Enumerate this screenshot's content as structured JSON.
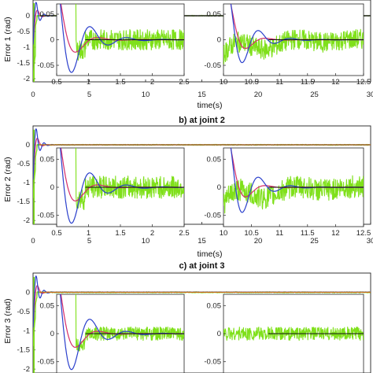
{
  "chart_data": [
    {
      "type": "line",
      "title": "",
      "xlabel": "time(s)",
      "ylabel": "Error 1 (rad)",
      "xlim": [
        0,
        30
      ],
      "ylim": [
        -2.1,
        0.5
      ],
      "x_ticks": [
        "0",
        "5",
        "10",
        "15",
        "20",
        "25",
        "30"
      ],
      "y_ticks": [
        "-2",
        "-1.5",
        "-1",
        "-0.5",
        "0"
      ],
      "series_colors": [
        "#7fe01a",
        "#d62d6a",
        "#2a3fcc",
        "#111111"
      ],
      "insets": [
        {
          "xlim": [
            0.5,
            2.5
          ],
          "ylim": [
            -0.07,
            0.07
          ],
          "x_ticks": [
            "0.5",
            "1",
            "1.5",
            "2",
            "2.5"
          ],
          "y_ticks": [
            "0.05",
            "0",
            "-0.05"
          ]
        },
        {
          "xlim": [
            10,
            12.5
          ],
          "ylim": [
            -0.07,
            0.07
          ],
          "x_ticks": [
            "10",
            "10.5",
            "11",
            "11.5",
            "12",
            "12.5"
          ],
          "y_ticks": [
            "0.05",
            "0",
            "-0.05"
          ]
        }
      ]
    },
    {
      "type": "line",
      "title": "b) at joint 2",
      "xlabel": "time(s)",
      "ylabel": "Error 2 (rad)",
      "xlim": [
        0,
        30
      ],
      "ylim": [
        -2.1,
        0.5
      ],
      "x_ticks": [
        "0",
        "5",
        "10",
        "15",
        "20",
        "25",
        "30"
      ],
      "y_ticks": [
        "-2",
        "-1.5",
        "-1",
        "-0.5",
        "0"
      ],
      "series_colors": [
        "#7fe01a",
        "#d62d6a",
        "#2a3fcc",
        "#111111"
      ],
      "insets": [
        {
          "xlim": [
            0.5,
            2.5
          ],
          "ylim": [
            -0.07,
            0.07
          ],
          "x_ticks": [
            "0.5",
            "1",
            "1.5",
            "2",
            "2.5"
          ],
          "y_ticks": [
            "0.05",
            "0",
            "-0.05"
          ]
        },
        {
          "xlim": [
            10,
            12.5
          ],
          "ylim": [
            -0.07,
            0.07
          ],
          "x_ticks": [
            "10",
            "10.5",
            "11",
            "11.5",
            "12",
            "12.5"
          ],
          "y_ticks": [
            "0.05",
            "0",
            "-0.05"
          ]
        }
      ]
    },
    {
      "type": "line",
      "title": "c) at joint 3",
      "xlabel": "",
      "ylabel": "Error 3 (rad)",
      "xlim": [
        0,
        30
      ],
      "ylim": [
        -2.1,
        0.5
      ],
      "x_ticks": [],
      "y_ticks": [
        "-2",
        "-1.5",
        "-1",
        "-0.5",
        "0"
      ],
      "series_colors": [
        "#7fe01a",
        "#d62d6a",
        "#2a3fcc",
        "#111111"
      ],
      "insets": [
        {
          "xlim": [
            0.5,
            2.5
          ],
          "ylim": [
            -0.07,
            0.07
          ],
          "x_ticks": [],
          "y_ticks": [
            "0.05",
            "0",
            "-0.05"
          ]
        },
        {
          "xlim": [
            10,
            12.5
          ],
          "ylim": [
            -0.07,
            0.07
          ],
          "x_ticks": [],
          "y_ticks": [
            "0.05",
            "0",
            "-0.05"
          ]
        }
      ]
    }
  ]
}
